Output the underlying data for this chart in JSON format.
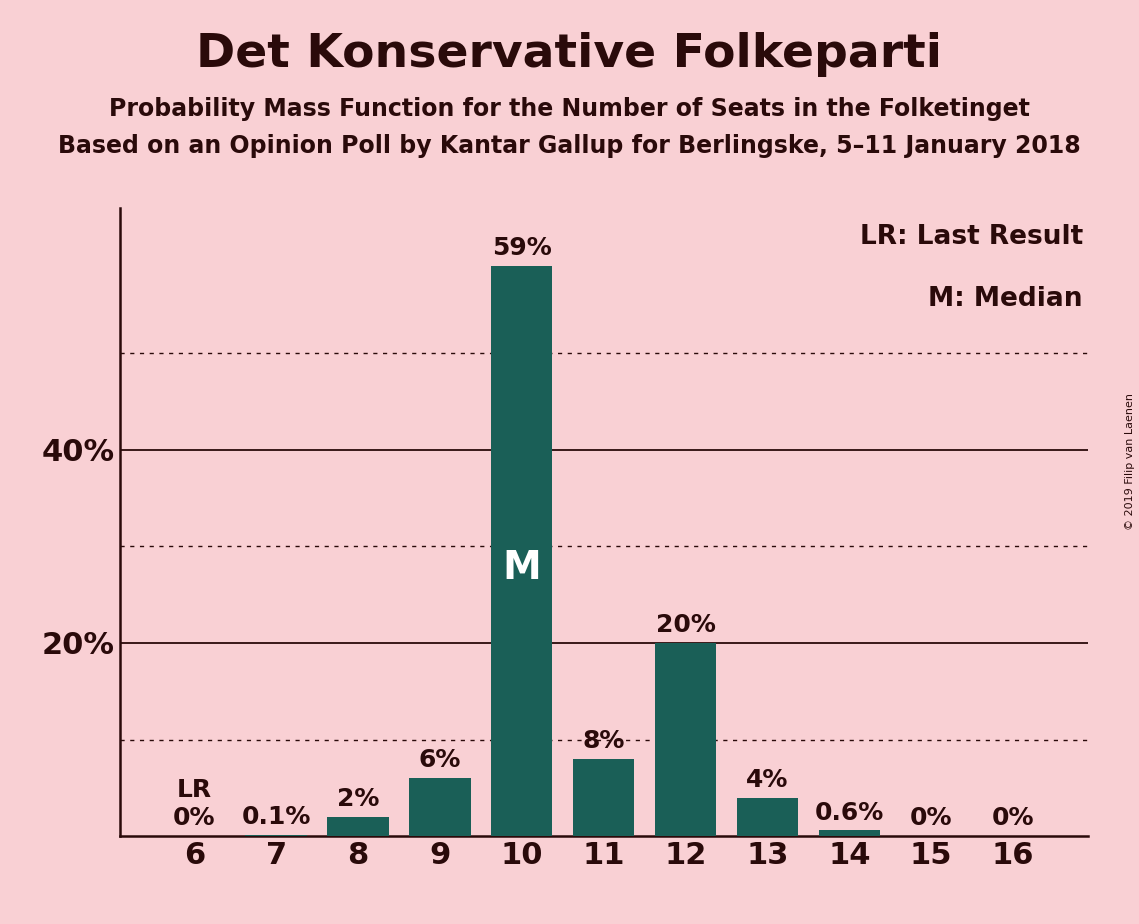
{
  "title": "Det Konservative Folkeparti",
  "subtitle1": "Probability Mass Function for the Number of Seats in the Folketinget",
  "subtitle2": "Based on an Opinion Poll by Kantar Gallup for Berlingske, 5–11 January 2018",
  "copyright": "© 2019 Filip van Laenen",
  "categories": [
    6,
    7,
    8,
    9,
    10,
    11,
    12,
    13,
    14,
    15,
    16
  ],
  "values": [
    0.0,
    0.1,
    2.0,
    6.0,
    59.0,
    8.0,
    20.0,
    4.0,
    0.6,
    0.0,
    0.0
  ],
  "labels": [
    "0%",
    "0.1%",
    "2%",
    "6%",
    "59%",
    "8%",
    "20%",
    "4%",
    "0.6%",
    "0%",
    "0%"
  ],
  "bar_color": "#1a5f57",
  "background_color": "#f9d0d4",
  "text_color": "#2a0a0a",
  "title_fontsize": 34,
  "subtitle_fontsize": 17,
  "label_fontsize": 18,
  "axis_label_fontsize": 22,
  "legend_fontsize": 19,
  "dotted_lines": [
    10,
    30,
    50
  ],
  "solid_lines": [
    20,
    40
  ],
  "ylim": [
    0,
    65
  ],
  "median_seat": 10,
  "lr_seat": 6,
  "legend_lr": "LR: Last Result",
  "legend_m": "M: Median",
  "bar_width": 0.75
}
